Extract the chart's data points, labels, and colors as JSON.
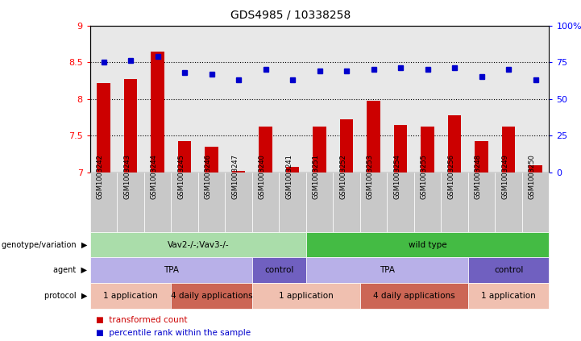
{
  "title": "GDS4985 / 10338258",
  "samples": [
    "GSM1003242",
    "GSM1003243",
    "GSM1003244",
    "GSM1003245",
    "GSM1003246",
    "GSM1003247",
    "GSM1003240",
    "GSM1003241",
    "GSM1003251",
    "GSM1003252",
    "GSM1003253",
    "GSM1003254",
    "GSM1003255",
    "GSM1003256",
    "GSM1003248",
    "GSM1003249",
    "GSM1003250"
  ],
  "red_values": [
    8.22,
    8.27,
    8.65,
    7.42,
    7.35,
    7.02,
    7.62,
    7.07,
    7.62,
    7.72,
    7.97,
    7.65,
    7.62,
    7.78,
    7.42,
    7.62,
    7.1
  ],
  "blue_values": [
    75,
    76,
    79,
    68,
    67,
    63,
    70,
    63,
    69,
    69,
    70,
    71,
    70,
    71,
    65,
    70,
    63
  ],
  "ylim_left": [
    7,
    9
  ],
  "ylim_right": [
    0,
    100
  ],
  "yticks_left": [
    7,
    7.5,
    8,
    8.5,
    9
  ],
  "yticks_right": [
    0,
    25,
    50,
    75,
    100
  ],
  "bar_color": "#cc0000",
  "dot_color": "#0000cc",
  "plot_bg_color": "#e8e8e8",
  "label_bg_color": "#c8c8c8",
  "genotype_segments": [
    {
      "text": "Vav2-/-;Vav3-/-",
      "start": 0,
      "end": 8,
      "color": "#aaddaa"
    },
    {
      "text": "wild type",
      "start": 8,
      "end": 17,
      "color": "#44bb44"
    }
  ],
  "agent_segments": [
    {
      "text": "TPA",
      "start": 0,
      "end": 6,
      "color": "#b8b0e8"
    },
    {
      "text": "control",
      "start": 6,
      "end": 8,
      "color": "#7060c0"
    },
    {
      "text": "TPA",
      "start": 8,
      "end": 14,
      "color": "#b8b0e8"
    },
    {
      "text": "control",
      "start": 14,
      "end": 17,
      "color": "#7060c0"
    }
  ],
  "protocol_segments": [
    {
      "text": "1 application",
      "start": 0,
      "end": 3,
      "color": "#f0c0b0"
    },
    {
      "text": "4 daily applications",
      "start": 3,
      "end": 6,
      "color": "#cc6655"
    },
    {
      "text": "1 application",
      "start": 6,
      "end": 10,
      "color": "#f0c0b0"
    },
    {
      "text": "4 daily applications",
      "start": 10,
      "end": 14,
      "color": "#cc6655"
    },
    {
      "text": "1 application",
      "start": 14,
      "end": 17,
      "color": "#f0c0b0"
    }
  ],
  "row_labels": [
    "genotype/variation",
    "agent",
    "protocol"
  ],
  "legend_red": "transformed count",
  "legend_blue": "percentile rank within the sample"
}
